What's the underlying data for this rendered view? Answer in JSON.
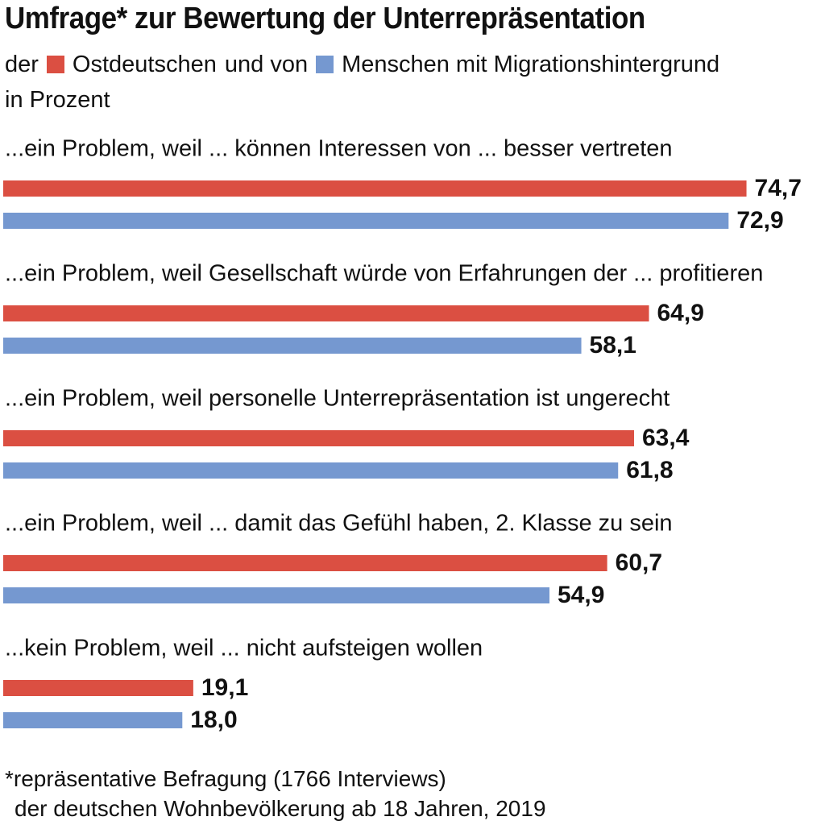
{
  "title": "Umfrage* zur Bewertung der Unterrepräsentation",
  "subtitle": {
    "prefix": "der",
    "middle": "und von",
    "line2": "in Prozent"
  },
  "legend": [
    {
      "label": "Ostdeutschen",
      "color": "#db4f42"
    },
    {
      "label": "Menschen mit Migrationshintergrund",
      "color": "#7598d0"
    }
  ],
  "chart_data": {
    "type": "bar",
    "orientation": "horizontal",
    "categories": [
      "...ein Problem, weil ... können Interessen von ... besser vertreten",
      "...ein Problem, weil Gesellschaft würde von Erfahrungen der ... profitieren",
      "...ein Problem, weil personelle Unterrepräsentation ist ungerecht",
      "...ein Problem, weil ... damit das Gefühl haben, 2. Klasse zu sein",
      "...kein Problem, weil ... nicht aufsteigen wollen"
    ],
    "series": [
      {
        "name": "Ostdeutschen",
        "values": [
          74.7,
          64.9,
          63.4,
          60.7,
          19.1
        ],
        "labels": [
          "74,7",
          "64,9",
          "63,4",
          "60,7",
          "19,1"
        ],
        "color": "#db4f42"
      },
      {
        "name": "Menschen mit Migrationshintergrund",
        "values": [
          72.9,
          58.1,
          61.8,
          54.9,
          18.0
        ],
        "labels": [
          "72,9",
          "58,1",
          "61,8",
          "54,9",
          "18,0"
        ],
        "color": "#7598d0"
      }
    ],
    "xlim": [
      0,
      100
    ],
    "grid": false
  },
  "footnote": {
    "line1": "*repräsentative Befragung (1766 Interviews)",
    "line2": "der deutschen Wohnbevölkerung ab 18 Jahren, 2019"
  }
}
